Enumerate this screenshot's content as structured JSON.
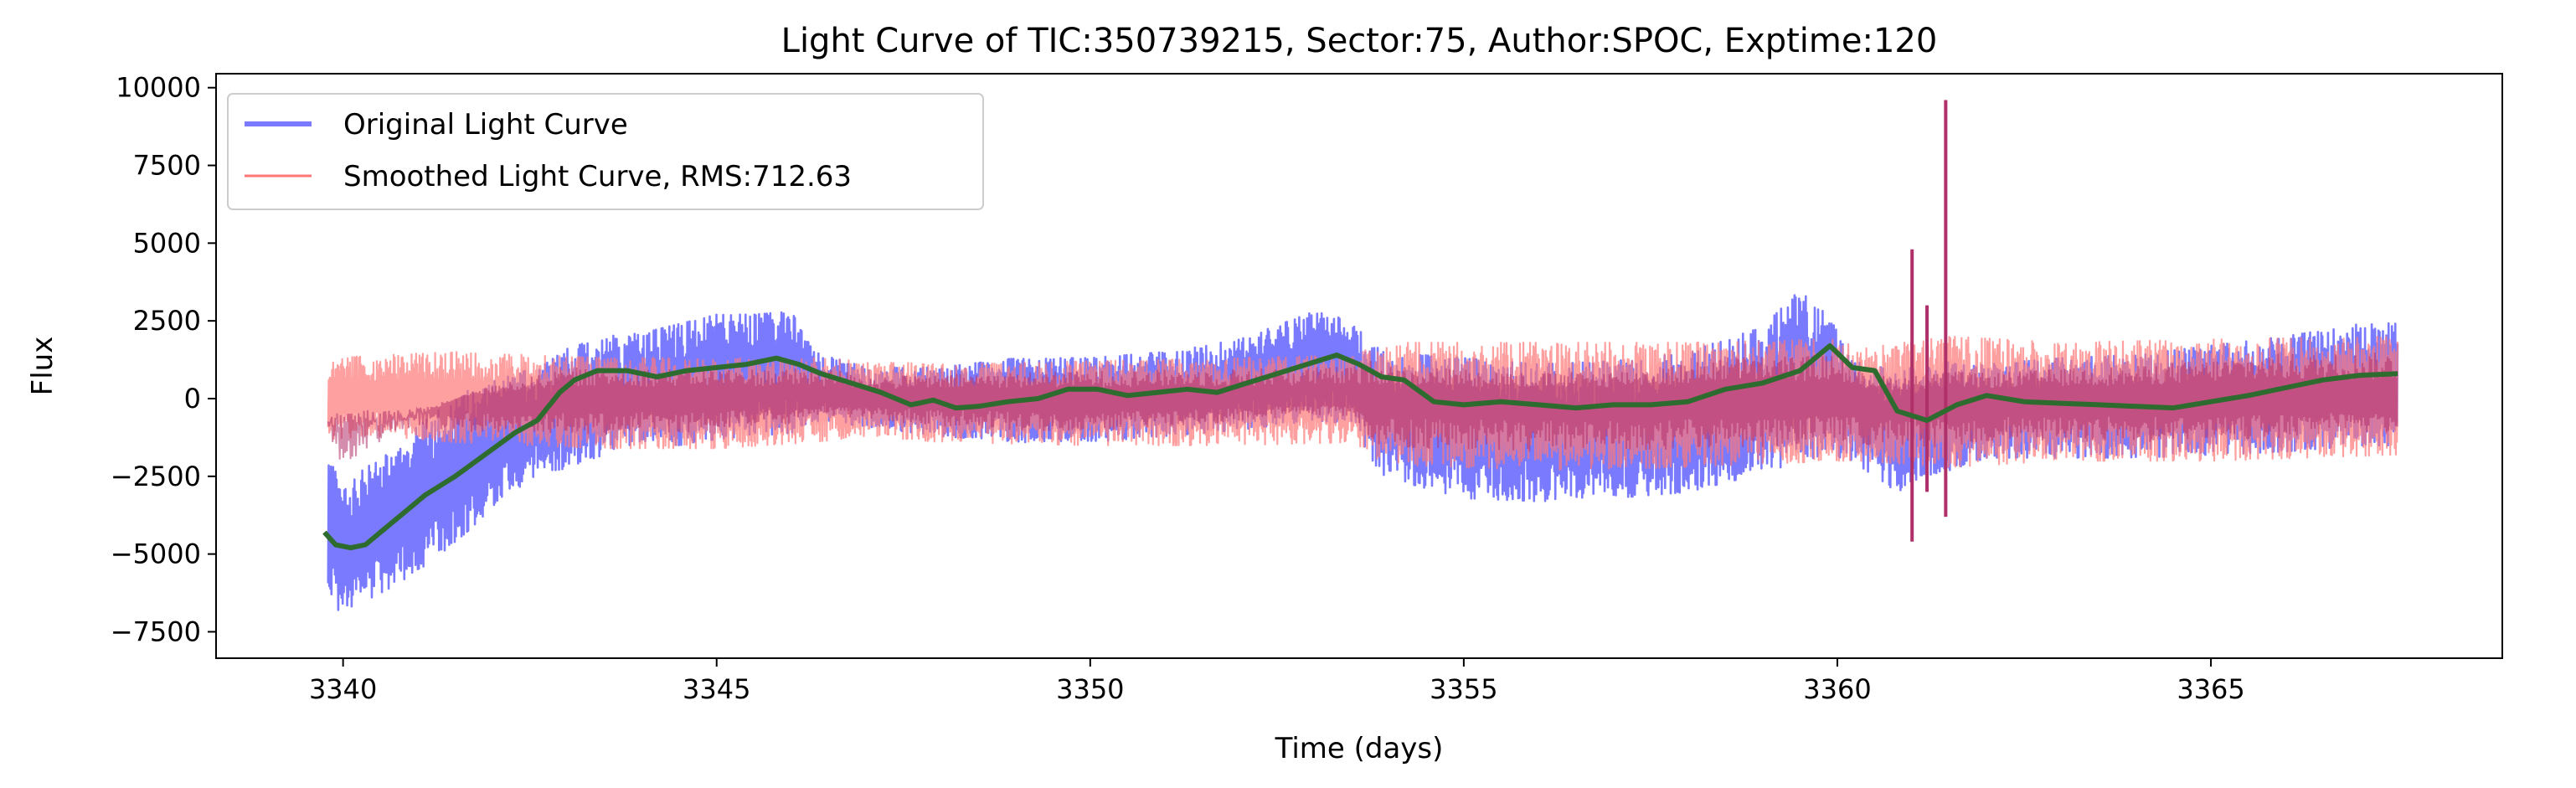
{
  "chart_data": {
    "type": "line",
    "title": "Light Curve of TIC:350739215, Sector:75, Author:SPOC, Exptime:120",
    "xlabel": "Time (days)",
    "ylabel": "Flux",
    "xlim": [
      3338.3,
      3368.9
    ],
    "ylim": [
      -8350,
      10450
    ],
    "xticks": [
      3340,
      3345,
      3350,
      3355,
      3360,
      3365
    ],
    "xtick_labels": [
      "3340",
      "3345",
      "3350",
      "3355",
      "3360",
      "3365"
    ],
    "yticks": [
      -7500,
      -5000,
      -2500,
      0,
      2500,
      5000,
      7500,
      10000
    ],
    "ytick_labels": [
      "−7500",
      "−5000",
      "−2500",
      "0",
      "2500",
      "5000",
      "7500",
      "10000"
    ],
    "grid": false,
    "legend_position": "top-left",
    "colors": {
      "original": "#7a7aff",
      "smoothed": "#ff7777",
      "overlap": "#b0306a",
      "trend": "#2e6b2e"
    },
    "series": [
      {
        "name": "Original Light Curve",
        "color": "#7a7aff",
        "envelope": {
          "x": [
            3339.8,
            3340.0,
            3340.3,
            3340.7,
            3341.2,
            3341.7,
            3342.2,
            3342.7,
            3343.0,
            3343.5,
            3344.0,
            3344.5,
            3345.0,
            3345.5,
            3346.0,
            3346.3,
            3347.0,
            3348.0,
            3349.0,
            3350.0,
            3351.0,
            3352.0,
            3353.0,
            3353.5,
            3353.9,
            3355.0,
            3356.0,
            3357.0,
            3358.0,
            3359.0,
            3359.5,
            3359.9,
            3360.2,
            3360.8,
            3361.5,
            3362.0,
            3363.0,
            3364.0,
            3365.0,
            3366.0,
            3367.0,
            3367.5
          ],
          "upper": [
            -1500,
            -3000,
            -2200,
            -1500,
            -500,
            300,
            700,
            1100,
            1600,
            2000,
            2100,
            2400,
            2700,
            2700,
            2800,
            1500,
            1000,
            1000,
            1300,
            1300,
            1500,
            1900,
            2800,
            2500,
            1500,
            1300,
            1100,
            1200,
            1500,
            2300,
            3500,
            2600,
            1200,
            900,
            1200,
            1100,
            1300,
            1400,
            1700,
            2000,
            2400,
            2500
          ],
          "lower": [
            -6500,
            -7000,
            -6500,
            -6000,
            -5200,
            -4200,
            -3000,
            -2500,
            -2200,
            -1800,
            -1400,
            -1500,
            -1300,
            -1200,
            -1100,
            -700,
            -900,
            -1200,
            -1400,
            -1400,
            -1200,
            -1000,
            -700,
            -800,
            -2500,
            -3200,
            -3300,
            -3200,
            -3000,
            -2400,
            -2000,
            -1800,
            -2000,
            -3000,
            -2300,
            -1900,
            -1900,
            -1900,
            -1800,
            -1700,
            -1500,
            -1500
          ]
        }
      },
      {
        "name": "Smoothed Light Curve, RMS:712.63",
        "color": "#ff7777",
        "envelope": {
          "x": [
            3339.8,
            3340.5,
            3341.5,
            3342.5,
            3343.5,
            3345.0,
            3346.3,
            3347.0,
            3348.0,
            3350.0,
            3352.0,
            3353.5,
            3353.9,
            3356.0,
            3358.0,
            3360.0,
            3360.3,
            3361.5,
            3363.0,
            3365.0,
            3367.5
          ],
          "upper": [
            1300,
            1400,
            1500,
            1400,
            1300,
            1300,
            1300,
            1200,
            1100,
            1200,
            1300,
            1400,
            1800,
            1800,
            1800,
            1900,
            1600,
            2000,
            1800,
            1900,
            2000
          ],
          "lower": [
            -1300,
            -1200,
            -1400,
            -1500,
            -1600,
            -1600,
            -1400,
            -1200,
            -1400,
            -1500,
            -1500,
            -1400,
            -2100,
            -2300,
            -2200,
            -2000,
            -2000,
            -2200,
            -2000,
            -2000,
            -1800
          ]
        }
      },
      {
        "name": "",
        "color": "#2e6b2e",
        "x": [
          3339.75,
          3339.9,
          3340.1,
          3340.3,
          3340.5,
          3340.8,
          3341.1,
          3341.5,
          3341.9,
          3342.3,
          3342.6,
          3342.9,
          3343.1,
          3343.4,
          3343.8,
          3344.2,
          3344.6,
          3345.0,
          3345.4,
          3345.8,
          3346.1,
          3346.4,
          3346.8,
          3347.2,
          3347.6,
          3347.9,
          3348.2,
          3348.5,
          3348.9,
          3349.3,
          3349.7,
          3350.1,
          3350.5,
          3350.9,
          3351.3,
          3351.7,
          3352.1,
          3352.5,
          3352.9,
          3353.3,
          3353.6,
          3353.9,
          3354.2,
          3354.6,
          3355.0,
          3355.5,
          3356.0,
          3356.5,
          3357.0,
          3357.5,
          3358.0,
          3358.5,
          3359.0,
          3359.5,
          3359.9,
          3360.2,
          3360.5,
          3360.8,
          3361.2,
          3361.6,
          3362.0,
          3362.5,
          3363.0,
          3363.5,
          3364.0,
          3364.5,
          3365.0,
          3365.5,
          3366.0,
          3366.5,
          3367.0,
          3367.5
        ],
        "y": [
          -4300,
          -4700,
          -4800,
          -4700,
          -4300,
          -3700,
          -3100,
          -2500,
          -1800,
          -1100,
          -700,
          200,
          600,
          900,
          900,
          700,
          900,
          1000,
          1100,
          1300,
          1100,
          800,
          500,
          200,
          -200,
          -50,
          -300,
          -250,
          -100,
          0,
          300,
          300,
          100,
          200,
          300,
          200,
          500,
          800,
          1100,
          1400,
          1100,
          700,
          600,
          -100,
          -200,
          -100,
          -200,
          -300,
          -200,
          -200,
          -100,
          300,
          500,
          900,
          1700,
          1000,
          900,
          -400,
          -700,
          -200,
          100,
          -100,
          -150,
          -200,
          -250,
          -300,
          -100,
          100,
          350,
          600,
          750,
          800
        ]
      }
    ]
  },
  "legend": {
    "items": [
      {
        "label": "Original Light Curve",
        "color": "#7a7aff"
      },
      {
        "label": "Smoothed Light Curve, RMS:712.63",
        "color": "#ff7777"
      }
    ]
  }
}
